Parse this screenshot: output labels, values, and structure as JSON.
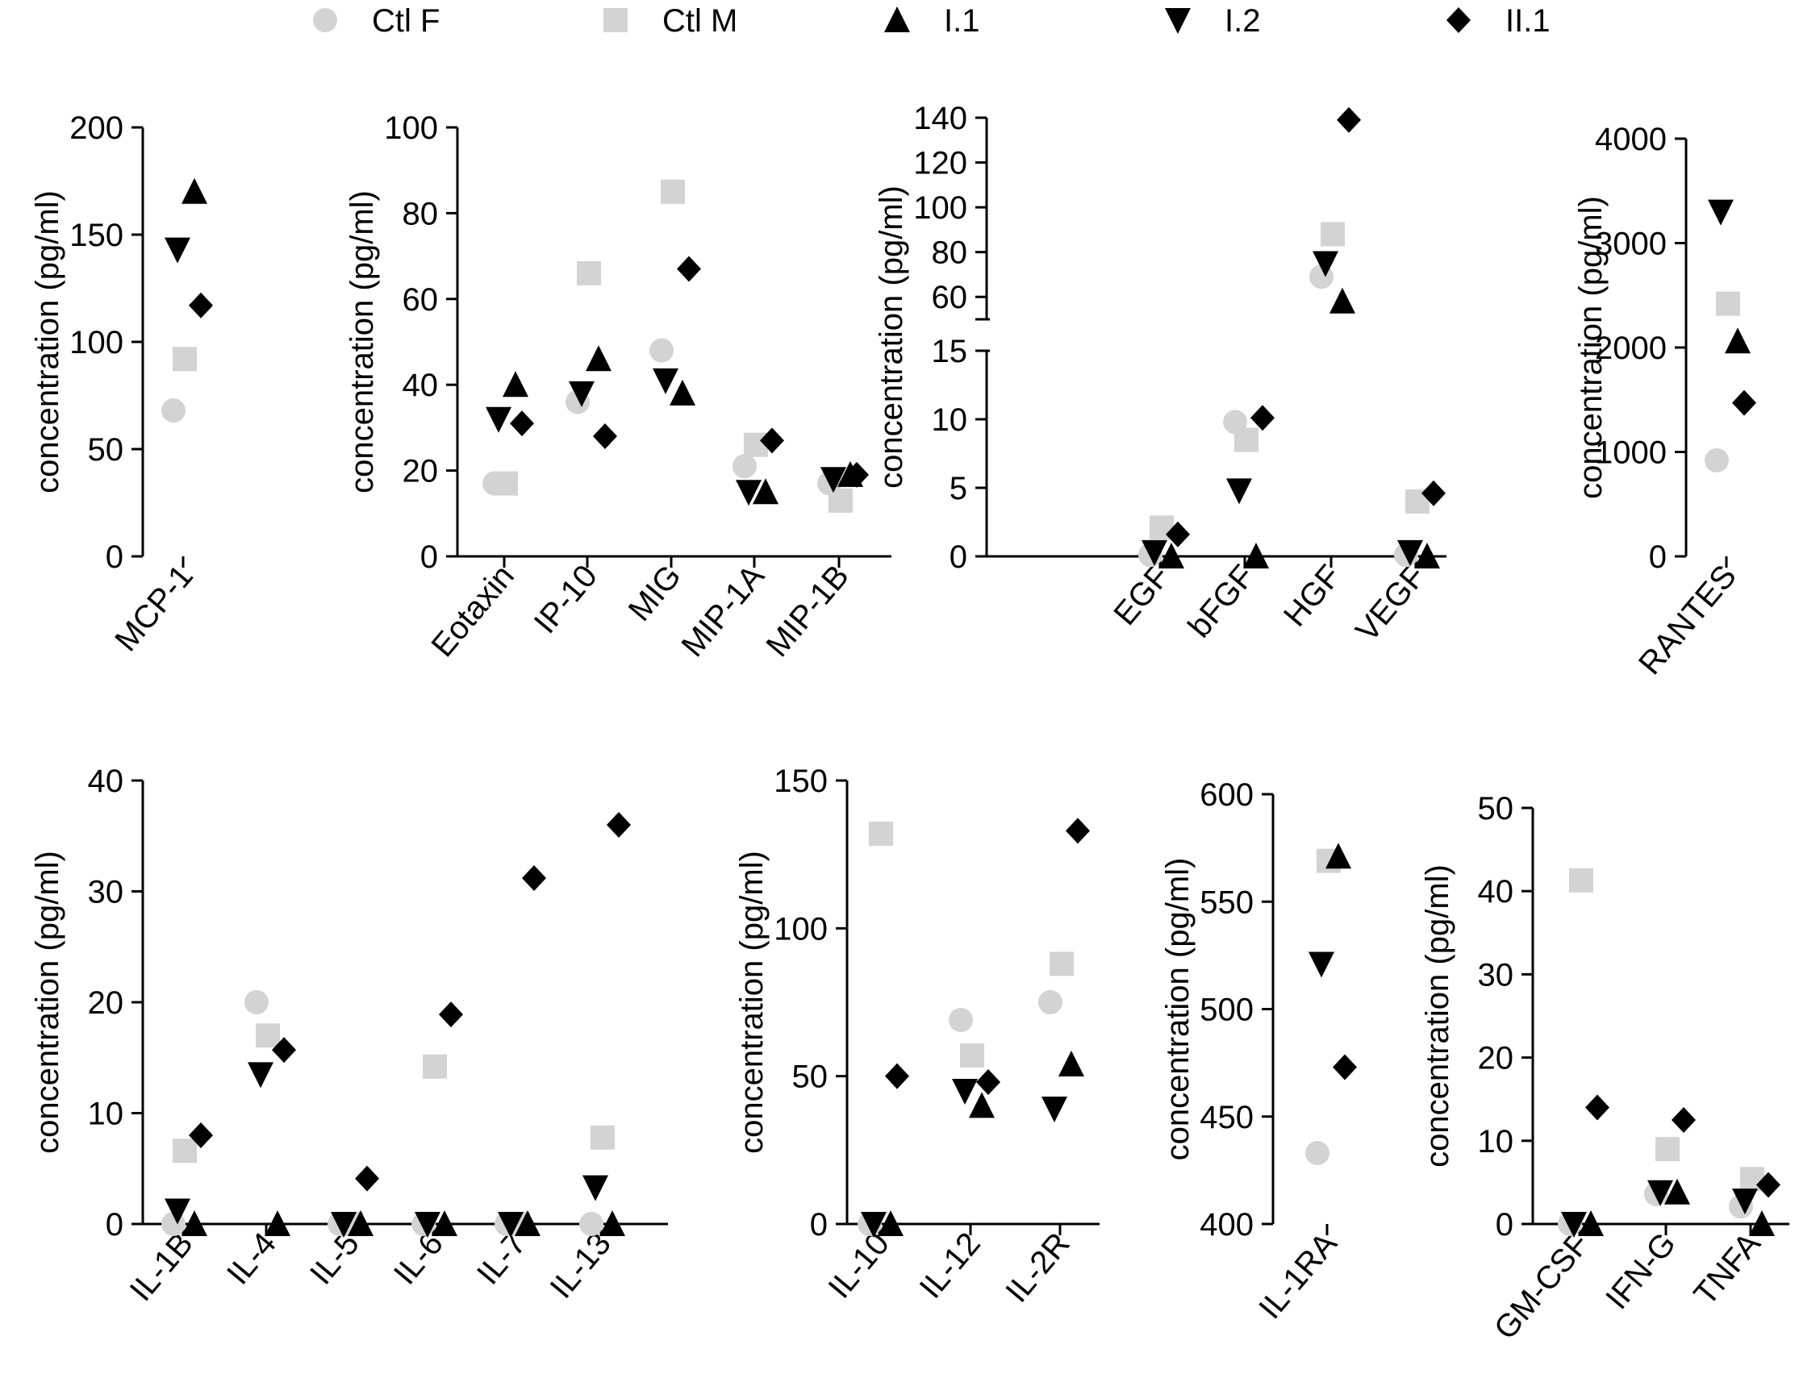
{
  "legend": [
    {
      "name": "Ctl F",
      "marker": "circle",
      "color": "#d3d3d3"
    },
    {
      "name": "Ctl M",
      "marker": "square",
      "color": "#d3d3d3"
    },
    {
      "name": "I.1",
      "marker": "triangle-up",
      "color": "#000000"
    },
    {
      "name": "I.2",
      "marker": "triangle-down",
      "color": "#000000"
    },
    {
      "name": "II.1",
      "marker": "diamond",
      "color": "#000000"
    }
  ],
  "chart_data": [
    {
      "type": "scatter",
      "ylabel": "concentration (pg/ml)",
      "ylim": [
        0,
        200
      ],
      "yticks": [
        "0",
        "50",
        "100",
        "150",
        "200"
      ],
      "categories": [
        "MCP-1"
      ],
      "series": [
        {
          "name": "Ctl F",
          "values": [
            68
          ]
        },
        {
          "name": "Ctl M",
          "values": [
            92
          ]
        },
        {
          "name": "I.1",
          "values": [
            170
          ]
        },
        {
          "name": "I.2",
          "values": [
            143
          ]
        },
        {
          "name": "II.1",
          "values": [
            117
          ]
        }
      ]
    },
    {
      "type": "scatter",
      "ylabel": "concentration (pg/ml)",
      "ylim": [
        0,
        100
      ],
      "yticks": [
        "0",
        "20",
        "40",
        "60",
        "80",
        "100"
      ],
      "categories": [
        "Eotaxin",
        "IP-10",
        "MIG",
        "MIP-1A",
        "MIP-1B"
      ],
      "series": [
        {
          "name": "Ctl F",
          "values": [
            17,
            36,
            48,
            21,
            17
          ]
        },
        {
          "name": "Ctl M",
          "values": [
            17,
            66,
            85,
            26,
            13
          ]
        },
        {
          "name": "I.1",
          "values": [
            40,
            46,
            38,
            15,
            19
          ]
        },
        {
          "name": "I.2",
          "values": [
            32,
            38,
            41,
            15,
            18
          ]
        },
        {
          "name": "II.1",
          "values": [
            31,
            28,
            67,
            27,
            19
          ]
        }
      ]
    },
    {
      "type": "scatter",
      "ylabel": "concentration (pg/ml)",
      "broken_axis": true,
      "ylim_lower": [
        0,
        15
      ],
      "ylim_upper": [
        50,
        140
      ],
      "yticks_lower": [
        "0",
        "5",
        "10",
        "15"
      ],
      "yticks_upper": [
        "60",
        "80",
        "100",
        "120",
        "140"
      ],
      "categories": [
        "EGF",
        "bFGF",
        "HGF",
        "VEGF"
      ],
      "series": [
        {
          "name": "Ctl F",
          "values": [
            0.1,
            9.8,
            69,
            0.1
          ]
        },
        {
          "name": "Ctl M",
          "values": [
            2.1,
            8.5,
            88,
            4
          ]
        },
        {
          "name": "I.1",
          "values": [
            0,
            0,
            58,
            0
          ]
        },
        {
          "name": "I.2",
          "values": [
            0.3,
            4.8,
            75,
            0.3
          ]
        },
        {
          "name": "II.1",
          "values": [
            1.6,
            10.1,
            139,
            4.6
          ]
        }
      ]
    },
    {
      "type": "scatter",
      "ylabel": "concentration (pg/ml)",
      "ylim": [
        0,
        4000
      ],
      "yticks": [
        "0",
        "1000",
        "2000",
        "3000",
        "4000"
      ],
      "categories": [
        "RANTES"
      ],
      "series": [
        {
          "name": "Ctl F",
          "values": [
            920
          ]
        },
        {
          "name": "Ctl M",
          "values": [
            2420
          ]
        },
        {
          "name": "I.1",
          "values": [
            2060
          ]
        },
        {
          "name": "I.2",
          "values": [
            3300
          ]
        },
        {
          "name": "II.1",
          "values": [
            1470
          ]
        }
      ]
    },
    {
      "type": "scatter",
      "ylabel": "concentration (pg/ml)",
      "ylim": [
        0,
        40
      ],
      "yticks": [
        "0",
        "10",
        "20",
        "30",
        "40"
      ],
      "categories": [
        "IL-1B",
        "IL-4",
        "IL-5",
        "IL-6",
        "IL-7",
        "IL-13"
      ],
      "series": [
        {
          "name": "Ctl F",
          "values": [
            0,
            20,
            0,
            0,
            0,
            0
          ]
        },
        {
          "name": "Ctl M",
          "values": [
            6.6,
            17,
            0,
            14.2,
            0,
            7.8
          ]
        },
        {
          "name": "I.1",
          "values": [
            0,
            0,
            0,
            0,
            0,
            0
          ]
        },
        {
          "name": "I.2",
          "values": [
            1.2,
            13.5,
            0,
            0,
            0,
            3.3
          ]
        },
        {
          "name": "II.1",
          "values": [
            8,
            15.7,
            4.1,
            18.9,
            31.2,
            36
          ]
        }
      ]
    },
    {
      "type": "scatter",
      "ylabel": "concentration (pg/ml)",
      "ylim": [
        0,
        150
      ],
      "yticks": [
        "0",
        "50",
        "100",
        "150"
      ],
      "categories": [
        "IL-10",
        "IL-12",
        "IL-2R"
      ],
      "series": [
        {
          "name": "Ctl F",
          "values": [
            0,
            69,
            75
          ]
        },
        {
          "name": "Ctl M",
          "values": [
            132,
            57,
            88
          ]
        },
        {
          "name": "I.1",
          "values": [
            0,
            40,
            54
          ]
        },
        {
          "name": "I.2",
          "values": [
            0,
            45,
            39
          ]
        },
        {
          "name": "II.1",
          "values": [
            50,
            48,
            133
          ]
        }
      ]
    },
    {
      "type": "scatter",
      "ylabel": "concentration (pg/ml)",
      "ylim": [
        400,
        600
      ],
      "yticks": [
        "400",
        "450",
        "500",
        "550",
        "600"
      ],
      "categories": [
        "IL-1RA"
      ],
      "series": [
        {
          "name": "Ctl F",
          "values": [
            433
          ]
        },
        {
          "name": "Ctl M",
          "values": [
            569
          ]
        },
        {
          "name": "I.1",
          "values": [
            571
          ]
        },
        {
          "name": "I.2",
          "values": [
            521
          ]
        },
        {
          "name": "II.1",
          "values": [
            473
          ]
        }
      ]
    },
    {
      "type": "scatter",
      "ylabel": "concentration (pg/ml)",
      "ylim": [
        0,
        50
      ],
      "yticks": [
        "0",
        "10",
        "20",
        "30",
        "40",
        "50"
      ],
      "categories": [
        "GM-CSF",
        "IFN-G",
        "TNFA"
      ],
      "series": [
        {
          "name": "Ctl F",
          "values": [
            0,
            3.6,
            2.1
          ]
        },
        {
          "name": "Ctl M",
          "values": [
            41.3,
            9,
            5.4
          ]
        },
        {
          "name": "I.1",
          "values": [
            0,
            3.8,
            0
          ]
        },
        {
          "name": "I.2",
          "values": [
            0,
            3.8,
            2.8
          ]
        },
        {
          "name": "II.1",
          "values": [
            14,
            12.5,
            4.7
          ]
        }
      ]
    }
  ]
}
